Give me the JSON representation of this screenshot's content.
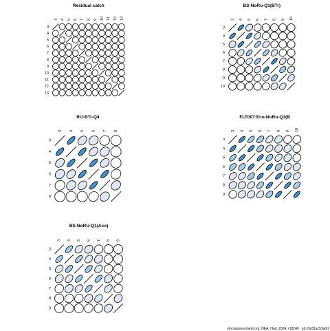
{
  "chart_data": [
    {
      "type": "heatmap",
      "title": "Residual catch",
      "labels": [
        "3",
        "4",
        "5",
        "6",
        "7",
        "8",
        "9",
        "10",
        "11",
        "12",
        "13"
      ],
      "matrix": [
        [
          1,
          0,
          0,
          0,
          0,
          0,
          0,
          0,
          0,
          0,
          0
        ],
        [
          0,
          1,
          0,
          0,
          0,
          0,
          0,
          0,
          0,
          0,
          0
        ],
        [
          0,
          0,
          1,
          0,
          0,
          0,
          0,
          0,
          0,
          0,
          0
        ],
        [
          0,
          0,
          0,
          1,
          0,
          0,
          0,
          0,
          0,
          0,
          0
        ],
        [
          0,
          0,
          0,
          0,
          1,
          0,
          0,
          0,
          0,
          0,
          0
        ],
        [
          0,
          0,
          0,
          0,
          0,
          1,
          0,
          0,
          0,
          0,
          0
        ],
        [
          0,
          0,
          0,
          0,
          0,
          0,
          1,
          0,
          0,
          0,
          0
        ],
        [
          0,
          0,
          0,
          0,
          0,
          0,
          0,
          1,
          0,
          0,
          0
        ],
        [
          0,
          0,
          0,
          0,
          0,
          0,
          0,
          0,
          1,
          0,
          0
        ],
        [
          0,
          0,
          0,
          0,
          0,
          0,
          0,
          0,
          0,
          1,
          0
        ],
        [
          0,
          0,
          0,
          0,
          0,
          0,
          0,
          0,
          0,
          0,
          1
        ]
      ]
    },
    {
      "type": "heatmap",
      "title": "BS-NoRu-Q1(BTr)",
      "labels": [
        "3",
        "4",
        "5",
        "6",
        "7",
        "8",
        "9",
        "10"
      ],
      "matrix": [
        [
          1,
          0.6,
          0.2,
          0.1,
          0.0,
          0.0,
          0.0,
          0.0
        ],
        [
          0.6,
          1,
          0.6,
          0.3,
          0.1,
          0.0,
          0.0,
          0.0
        ],
        [
          0.2,
          0.6,
          1,
          0.5,
          0.3,
          0.1,
          0.0,
          0.0
        ],
        [
          0.1,
          0.3,
          0.5,
          1,
          0.5,
          0.3,
          0.1,
          0.0
        ],
        [
          0.0,
          0.1,
          0.3,
          0.5,
          1,
          0.6,
          0.3,
          0.1
        ],
        [
          0.0,
          0.0,
          0.1,
          0.3,
          0.6,
          1,
          0.4,
          0.2
        ],
        [
          0.0,
          0.0,
          0.0,
          0.1,
          0.3,
          0.4,
          1,
          0.3
        ],
        [
          0.0,
          0.0,
          0.0,
          0.0,
          0.1,
          0.2,
          0.3,
          1
        ]
      ]
    },
    {
      "type": "heatmap",
      "title": "RU-BTr-Q4",
      "labels": [
        "3",
        "4",
        "5",
        "6",
        "7",
        "8"
      ],
      "matrix": [
        [
          1,
          0.6,
          0.3,
          0.2,
          0.1,
          0.0
        ],
        [
          0.6,
          1,
          0.6,
          0.3,
          0.2,
          0.0
        ],
        [
          0.3,
          0.6,
          1,
          0.6,
          0.3,
          0.0
        ],
        [
          0.2,
          0.3,
          0.6,
          1,
          0.6,
          0.1
        ],
        [
          0.1,
          0.2,
          0.3,
          0.6,
          1,
          0.2
        ],
        [
          0.0,
          0.0,
          0.0,
          0.1,
          0.2,
          1
        ]
      ]
    },
    {
      "type": "heatmap",
      "title": "FLT007:Eco-NoRu-Q3(B",
      "labels": [
        "3",
        "4",
        "5",
        "6",
        "7",
        "8",
        "9",
        "10"
      ],
      "matrix": [
        [
          1,
          0.6,
          0.5,
          0.4,
          0.3,
          0.2,
          0.1,
          0.1
        ],
        [
          0.6,
          1,
          0.6,
          0.4,
          0.3,
          0.2,
          0.2,
          0.1
        ],
        [
          0.5,
          0.6,
          1,
          0.6,
          0.4,
          0.3,
          0.2,
          0.1
        ],
        [
          0.4,
          0.4,
          0.6,
          1,
          0.6,
          0.4,
          0.3,
          0.2
        ],
        [
          0.3,
          0.3,
          0.4,
          0.6,
          1,
          0.6,
          0.4,
          0.3
        ],
        [
          0.2,
          0.2,
          0.3,
          0.4,
          0.6,
          1,
          0.6,
          0.4
        ],
        [
          0.1,
          0.2,
          0.2,
          0.3,
          0.4,
          0.6,
          1,
          0.6
        ]
      ],
      "row_labels": [
        "3",
        "4",
        "5",
        "6",
        "7",
        "8",
        "9"
      ]
    },
    {
      "type": "heatmap",
      "title": "BS-NoRU-Q1(Aco)",
      "labels": [
        "3",
        "4",
        "5",
        "6",
        "7",
        "8",
        "9"
      ],
      "matrix": [
        [
          1,
          0.5,
          0.3,
          0.2,
          0.1,
          0.0,
          0.0
        ],
        [
          0.5,
          1,
          0.5,
          0.3,
          0.2,
          0.1,
          0.0
        ],
        [
          0.3,
          0.5,
          1,
          0.5,
          0.3,
          0.1,
          0.0
        ],
        [
          0.2,
          0.3,
          0.5,
          1,
          0.5,
          0.2,
          0.1
        ],
        [
          0.1,
          0.2,
          0.3,
          0.5,
          1,
          0.3,
          0.1
        ],
        [
          0.0,
          0.1,
          0.1,
          0.2,
          0.3,
          1,
          0.2
        ],
        [
          0.0,
          0.0,
          0.0,
          0.1,
          0.1,
          0.2,
          1
        ]
      ]
    }
  ],
  "colors": {
    "high": "#4a90c8",
    "mid": "#a9cbe4",
    "low": "#dfe8f2",
    "stroke": "#000000"
  },
  "footer": "stockassessment.org, NEA_Had_2024, r18240 , git:c9c81ac53a0d"
}
